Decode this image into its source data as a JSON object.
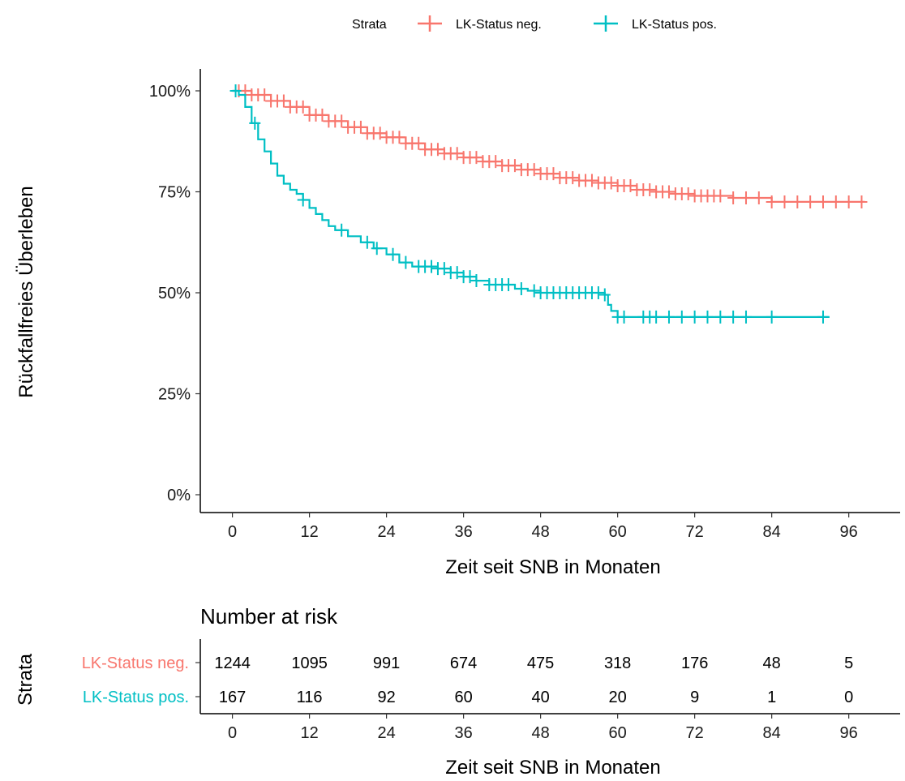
{
  "chart_data": {
    "type": "line",
    "subtype": "kaplan-meier",
    "title": "",
    "xlabel": "Zeit seit SNB in Monaten",
    "ylabel": "Rückfallfreies Überleben",
    "xlim": [
      -5,
      104
    ],
    "ylim": [
      0,
      1
    ],
    "x_ticks": [
      0,
      12,
      24,
      36,
      48,
      60,
      72,
      84,
      96
    ],
    "y_ticks": [
      0,
      0.25,
      0.5,
      0.75,
      1.0
    ],
    "y_tick_labels": [
      "0%",
      "25%",
      "50%",
      "75%",
      "100%"
    ],
    "grid": false,
    "legend": {
      "title": "Strata",
      "position": "top",
      "entries": [
        "LK-Status neg.",
        "LK-Status pos."
      ]
    },
    "series": [
      {
        "name": "LK-Status neg.",
        "color": "#F8766D",
        "x": [
          0,
          3,
          6,
          9,
          12,
          15,
          18,
          21,
          24,
          27,
          30,
          33,
          36,
          39,
          42,
          45,
          48,
          51,
          54,
          57,
          60,
          63,
          66,
          69,
          72,
          78,
          84,
          98.5
        ],
        "y": [
          1.0,
          0.99,
          0.975,
          0.96,
          0.94,
          0.925,
          0.91,
          0.895,
          0.885,
          0.87,
          0.855,
          0.845,
          0.835,
          0.825,
          0.815,
          0.805,
          0.795,
          0.785,
          0.778,
          0.772,
          0.765,
          0.755,
          0.75,
          0.745,
          0.74,
          0.735,
          0.725,
          0.725
        ],
        "censor_x": [
          1,
          2,
          3,
          4,
          5,
          6,
          7,
          8,
          9,
          10,
          11,
          12,
          13,
          14,
          15,
          16,
          17,
          18,
          19,
          20,
          21,
          22,
          23,
          24,
          25,
          26,
          27,
          28,
          29,
          30,
          31,
          32,
          33,
          34,
          35,
          36,
          37,
          38,
          39,
          40,
          41,
          42,
          43,
          44,
          45,
          46,
          47,
          48,
          49,
          50,
          51,
          52,
          53,
          54,
          55,
          56,
          57,
          58,
          59,
          60,
          61,
          62,
          63,
          64,
          65,
          66,
          67,
          68,
          69,
          70,
          71,
          72,
          73,
          74,
          75,
          76,
          78,
          80,
          82,
          84,
          86,
          88,
          90,
          92,
          94,
          96,
          98
        ]
      },
      {
        "name": "LK-Status pos.",
        "color": "#00BFC4",
        "x": [
          0,
          1,
          2,
          3,
          4,
          5,
          6,
          7,
          8,
          9,
          10,
          11,
          12,
          13,
          14,
          15,
          16,
          18,
          20,
          22,
          24,
          26,
          28,
          30,
          32,
          34,
          36,
          38,
          40,
          42,
          44,
          46,
          48,
          50,
          52,
          54,
          56,
          58,
          58.5,
          59,
          60,
          93
        ],
        "y": [
          1.0,
          0.99,
          0.96,
          0.92,
          0.88,
          0.85,
          0.82,
          0.79,
          0.77,
          0.755,
          0.745,
          0.73,
          0.71,
          0.695,
          0.68,
          0.665,
          0.655,
          0.64,
          0.625,
          0.61,
          0.595,
          0.575,
          0.565,
          0.565,
          0.56,
          0.55,
          0.54,
          0.53,
          0.52,
          0.52,
          0.51,
          0.505,
          0.5,
          0.5,
          0.5,
          0.5,
          0.5,
          0.495,
          0.47,
          0.455,
          0.44,
          0.44
        ]
      }
    ],
    "pos_censor_x": [
      0.5,
      3.5,
      11,
      17,
      21,
      22.5,
      25,
      27,
      29,
      30,
      31,
      32,
      33,
      34,
      35,
      36,
      37,
      38,
      40,
      41,
      42,
      43,
      45,
      47,
      48,
      49,
      50,
      51,
      52,
      53,
      54,
      55,
      56,
      57,
      58,
      60,
      61,
      64,
      65,
      66,
      68,
      70,
      72,
      74,
      76,
      78,
      80,
      84,
      92
    ]
  },
  "risk_table": {
    "title": "Number at risk",
    "strata_axis_label": "Strata",
    "xlabel": "Zeit seit SNB in Monaten",
    "times": [
      0,
      12,
      24,
      36,
      48,
      60,
      72,
      84,
      96
    ],
    "rows": [
      {
        "label": "LK-Status neg.",
        "color": "#F8766D",
        "counts": [
          1244,
          1095,
          991,
          674,
          475,
          318,
          176,
          48,
          5
        ]
      },
      {
        "label": "LK-Status pos.",
        "color": "#00BFC4",
        "counts": [
          167,
          116,
          92,
          60,
          40,
          20,
          9,
          1,
          0
        ]
      }
    ]
  }
}
